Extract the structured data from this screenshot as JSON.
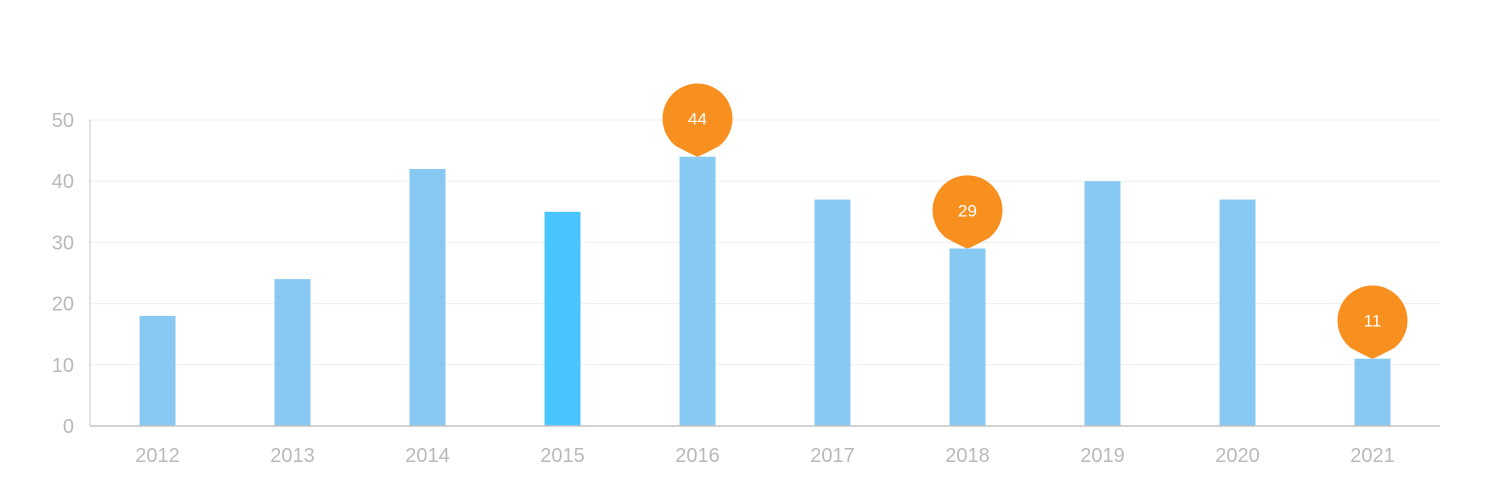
{
  "chart_data": {
    "type": "bar",
    "categories": [
      "2012",
      "2013",
      "2014",
      "2015",
      "2016",
      "2017",
      "2018",
      "2019",
      "2020",
      "2021"
    ],
    "values": [
      18,
      24,
      42,
      35,
      44,
      37,
      29,
      40,
      37,
      11
    ],
    "ylim": [
      0,
      50
    ],
    "yticks": [
      0,
      10,
      20,
      30,
      40,
      50
    ],
    "grid": true,
    "highlighted_category": "2015",
    "markers": [
      {
        "category": "2016",
        "value": 44,
        "label": "44"
      },
      {
        "category": "2018",
        "value": 29,
        "label": "29"
      },
      {
        "category": "2021",
        "value": 11,
        "label": "11"
      }
    ],
    "colors": {
      "bar": "#87c9f3",
      "bar_highlight": "#4ac4ff",
      "marker": "#f7901e",
      "grid": "#eeeeee",
      "axis": "#c4c4c4",
      "tick_text": "#b9b9b9"
    }
  }
}
